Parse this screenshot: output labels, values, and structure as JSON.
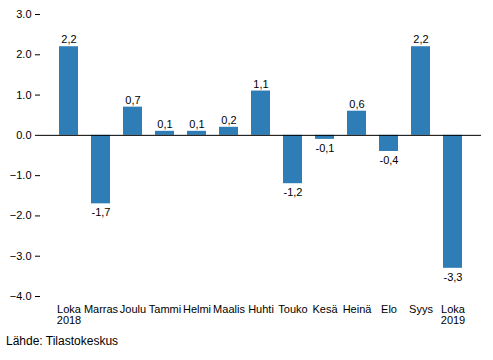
{
  "chart_data": {
    "type": "bar",
    "categories": [
      "Loka\n2018",
      "Marras",
      "Joulu",
      "Tammi",
      "Helmi",
      "Maalis",
      "Huhti",
      "Touko",
      "Kesä",
      "Heinä",
      "Elo",
      "Syys",
      "Loka\n2019"
    ],
    "values": [
      2.2,
      -1.7,
      0.7,
      0.1,
      0.1,
      0.2,
      1.1,
      -1.2,
      -0.1,
      0.6,
      -0.4,
      2.2,
      -3.3
    ],
    "value_labels": [
      "2,2",
      "-1,7",
      "0,7",
      "0,1",
      "0,1",
      "0,2",
      "1,1",
      "-1,2",
      "-0,1",
      "0,6",
      "-0,4",
      "2,2",
      "-3,3"
    ],
    "data_labels": true,
    "color": "#2e7db6",
    "ylim": [
      -4,
      3
    ],
    "yticks": [
      -4,
      -3,
      -2,
      -1,
      0,
      1,
      2,
      3
    ],
    "grid": false,
    "caption": "Lähde: Tilastokeskus"
  }
}
